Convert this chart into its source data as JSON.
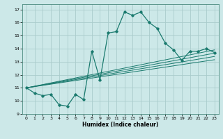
{
  "xlabel": "Humidex (Indice chaleur)",
  "ylabel": "",
  "bg_color": "#cce8e8",
  "grid_color": "#aacccc",
  "line_color": "#1a7a6e",
  "xlim": [
    -0.5,
    23.5
  ],
  "ylim": [
    9,
    17.4
  ],
  "xticks": [
    0,
    1,
    2,
    3,
    4,
    5,
    6,
    7,
    8,
    9,
    10,
    11,
    12,
    13,
    14,
    15,
    16,
    17,
    18,
    19,
    20,
    21,
    22,
    23
  ],
  "yticks": [
    9,
    10,
    11,
    12,
    13,
    14,
    15,
    16,
    17
  ],
  "main_line_x": [
    0,
    1,
    2,
    3,
    4,
    5,
    6,
    7,
    8,
    9,
    10,
    11,
    12,
    13,
    14,
    15,
    16,
    17,
    18,
    19,
    20,
    21,
    22,
    23
  ],
  "main_line_y": [
    11.0,
    10.6,
    10.4,
    10.5,
    9.7,
    9.6,
    10.5,
    10.1,
    13.8,
    11.6,
    15.2,
    15.3,
    16.8,
    16.55,
    16.8,
    16.0,
    15.55,
    14.4,
    13.9,
    13.1,
    13.8,
    13.8,
    14.0,
    13.7
  ],
  "linear_lines": [
    {
      "x": [
        0,
        23
      ],
      "y": [
        11.0,
        13.4
      ]
    },
    {
      "x": [
        0,
        23
      ],
      "y": [
        11.0,
        13.15
      ]
    },
    {
      "x": [
        0,
        23
      ],
      "y": [
        11.0,
        13.65
      ]
    },
    {
      "x": [
        0,
        23
      ],
      "y": [
        11.0,
        13.9
      ]
    }
  ],
  "xlabel_fontsize": 5.5,
  "tick_fontsize": 4.5
}
